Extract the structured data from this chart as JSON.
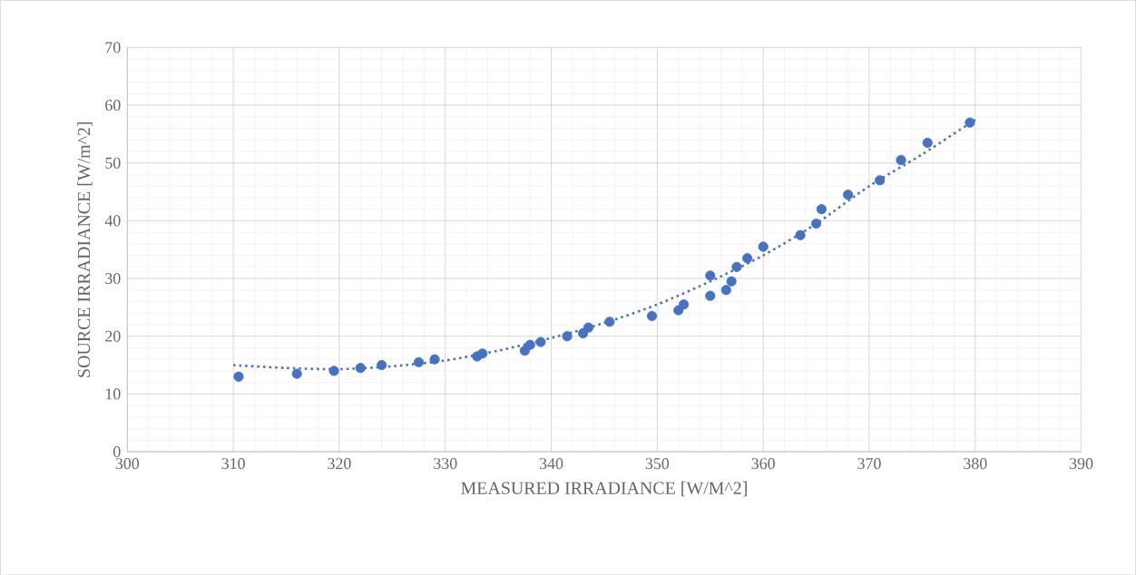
{
  "chart_data": {
    "type": "scatter",
    "xlabel": "MEASURED IRRADIANCE [W/M^2]",
    "ylabel": "SOURCE IRRADIANCE [W/m^2]",
    "xlim": [
      300,
      390
    ],
    "ylim": [
      0,
      70
    ],
    "xticks": [
      300,
      310,
      320,
      330,
      340,
      350,
      360,
      370,
      380,
      390
    ],
    "yticks": [
      0,
      10,
      20,
      30,
      40,
      50,
      60,
      70
    ],
    "grid": true,
    "series": [
      {
        "color": "#4472c4",
        "marker": "circle",
        "x": [
          310.5,
          316,
          319.5,
          322,
          324,
          327.5,
          329,
          333,
          333.5,
          337.5,
          338,
          339,
          341.5,
          343,
          343.5,
          345.5,
          349.5,
          352,
          352.5,
          355,
          355,
          356.5,
          357,
          357.5,
          358.5,
          360,
          363.5,
          365,
          365.5,
          368,
          371,
          373,
          375.5,
          379.5
        ],
        "values": [
          13,
          13.5,
          14,
          14.5,
          15,
          15.5,
          16,
          16.5,
          17,
          17.5,
          18.5,
          19,
          20,
          20.5,
          21.5,
          22.5,
          23.5,
          24.5,
          25.5,
          27,
          30.5,
          28,
          29.5,
          32,
          33.5,
          35.5,
          37.5,
          39.5,
          42,
          44.5,
          47,
          50.5,
          53.5,
          57
        ]
      },
      {
        "type": "line",
        "color": "#4472c4",
        "line_style": "dotted",
        "marker": "none",
        "x": [
          310,
          315,
          320,
          325,
          330,
          335,
          340,
          345,
          350,
          355,
          360,
          365,
          370,
          375,
          380
        ],
        "values": [
          15,
          14.5,
          14.3,
          14.8,
          15.8,
          17.5,
          19.7,
          22.3,
          25.5,
          29.5,
          34,
          39.5,
          46,
          51.5,
          57.5
        ]
      }
    ]
  }
}
